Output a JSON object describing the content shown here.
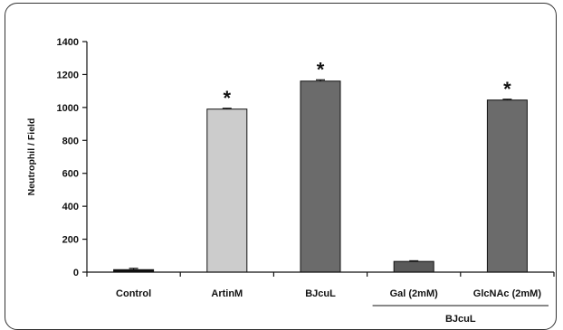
{
  "chart_data": {
    "type": "bar",
    "ylabel": "Neutrophil / Field",
    "ylim": [
      0,
      1400
    ],
    "yticks": [
      0,
      200,
      400,
      600,
      800,
      1000,
      1200,
      1400
    ],
    "categories": [
      "Control",
      "ArtinM",
      "BJcuL",
      "Gal (2mM)",
      "GlcNAc (2mM)"
    ],
    "values": [
      15,
      990,
      1160,
      65,
      1045
    ],
    "errors": [
      8,
      5,
      8,
      4,
      5
    ],
    "bar_colors": [
      "#111111",
      "#cccccc",
      "#6b6b6b",
      "#5a5a5a",
      "#6b6b6b"
    ],
    "significance": [
      "",
      "*",
      "*",
      "",
      "*"
    ],
    "group_label": "BJcuL",
    "group_categories": [
      "Gal (2mM)",
      "GlcNAc (2mM)"
    ],
    "grid": false
  }
}
